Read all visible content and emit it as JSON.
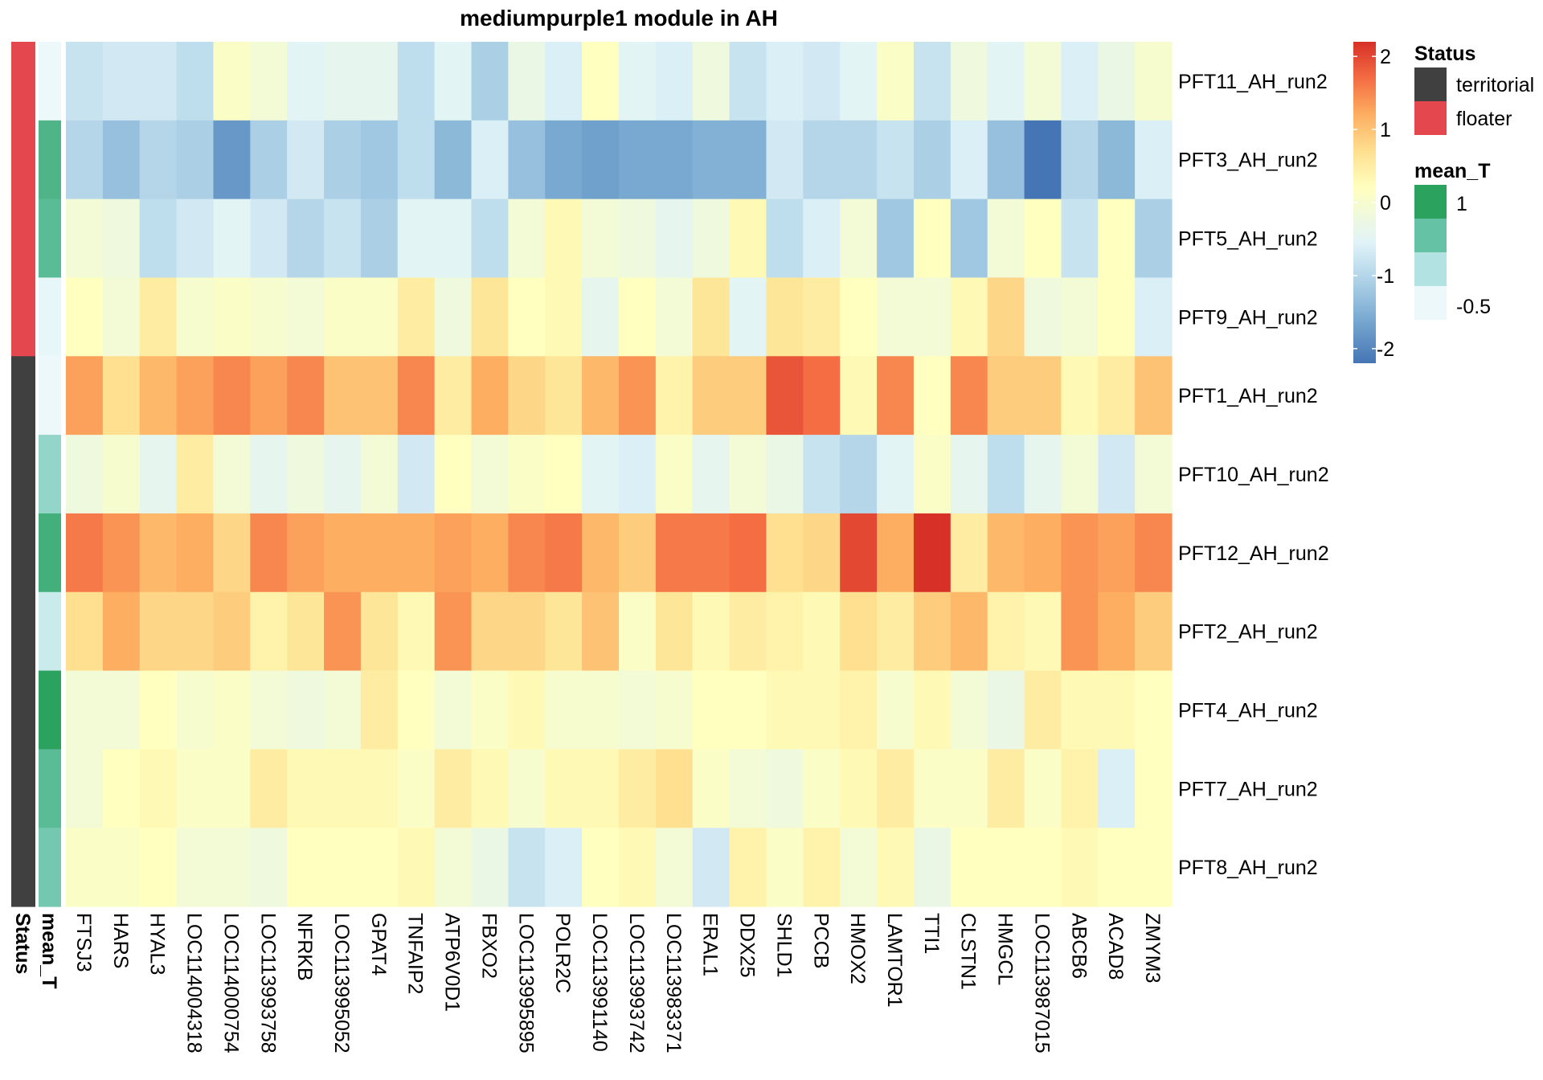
{
  "chart_data": {
    "type": "heatmap",
    "title": "mediumpurple1 module in AH",
    "columns": [
      "FTSJ3",
      "HARS",
      "HYAL3",
      "LOC114004318",
      "LOC114000754",
      "LOC113993758",
      "NFRKB",
      "LOC113995052",
      "GPAT4",
      "TNFAIP2",
      "ATP6V0D1",
      "FBXO2",
      "LOC113995895",
      "POLR2C",
      "LOC113991140",
      "LOC113993742",
      "LOC113983371",
      "ERAL1",
      "DDX25",
      "SHLD1",
      "PCCB",
      "HMOX2",
      "LAMTOR1",
      "TTI1",
      "CLSTN1",
      "HMGCL",
      "LOC113987015",
      "ABCB6",
      "ACAD8",
      "ZMYM3"
    ],
    "rows": [
      "PFT11_AH_run2",
      "PFT3_AH_run2",
      "PFT5_AH_run2",
      "PFT9_AH_run2",
      "PFT1_AH_run2",
      "PFT10_AH_run2",
      "PFT12_AH_run2",
      "PFT2_AH_run2",
      "PFT4_AH_run2",
      "PFT7_AH_run2",
      "PFT8_AH_run2"
    ],
    "values": [
      [
        -0.8,
        -0.7,
        -0.7,
        -0.9,
        0.1,
        -0.1,
        -0.5,
        -0.4,
        -0.4,
        -0.9,
        -0.5,
        -1.1,
        -0.3,
        -0.6,
        0.2,
        -0.5,
        -0.6,
        -0.2,
        -0.8,
        -0.6,
        -0.7,
        -0.5,
        0.1,
        -0.8,
        -0.2,
        -0.5,
        -0.1,
        -0.6,
        -0.3,
        0.0
      ],
      [
        -1.0,
        -1.3,
        -1.0,
        -1.1,
        -1.8,
        -1.1,
        -0.7,
        -1.1,
        -1.2,
        -0.9,
        -1.4,
        -0.6,
        -1.3,
        -1.6,
        -1.7,
        -1.6,
        -1.6,
        -1.5,
        -1.5,
        -0.7,
        -1.0,
        -1.0,
        -0.8,
        -1.1,
        -0.6,
        -1.3,
        -2.2,
        -1.0,
        -1.4,
        -0.6
      ],
      [
        -0.1,
        -0.2,
        -0.9,
        -0.7,
        -0.5,
        -0.7,
        -1.0,
        -0.8,
        -1.1,
        -0.5,
        -0.5,
        -0.9,
        -0.1,
        0.3,
        -0.1,
        -0.2,
        -0.4,
        -0.2,
        0.3,
        -0.9,
        -0.6,
        -0.1,
        -1.2,
        0.2,
        -1.2,
        -0.1,
        0.2,
        -0.8,
        0.2,
        -1.1
      ],
      [
        0.2,
        -0.1,
        0.5,
        0.0,
        0.1,
        0.0,
        -0.1,
        0.1,
        0.1,
        0.5,
        -0.2,
        0.6,
        0.2,
        0.3,
        -0.4,
        0.2,
        -0.1,
        0.6,
        -0.5,
        0.6,
        0.5,
        0.2,
        -0.1,
        -0.1,
        0.3,
        0.8,
        -0.2,
        -0.1,
        0.2,
        -0.6
      ],
      [
        1.3,
        0.7,
        1.1,
        1.3,
        1.5,
        1.3,
        1.5,
        1.0,
        1.0,
        1.5,
        0.5,
        1.2,
        0.8,
        0.6,
        1.1,
        1.4,
        0.4,
        0.9,
        0.9,
        1.9,
        1.7,
        0.3,
        1.5,
        0.2,
        1.5,
        0.9,
        0.9,
        0.3,
        0.5,
        1.0
      ],
      [
        -0.2,
        0.0,
        -0.4,
        0.5,
        -0.1,
        -0.4,
        -0.2,
        -0.4,
        -0.1,
        -0.7,
        0.2,
        -0.1,
        0.1,
        0.2,
        -0.5,
        -0.6,
        0.1,
        -0.4,
        -0.1,
        -0.3,
        -0.8,
        -1.0,
        -0.5,
        0.1,
        -0.4,
        -0.9,
        -0.4,
        -0.1,
        -0.7,
        -0.1
      ],
      [
        1.6,
        1.4,
        1.1,
        1.2,
        0.8,
        1.5,
        1.3,
        1.2,
        1.2,
        1.2,
        1.3,
        1.2,
        1.5,
        1.6,
        1.1,
        0.9,
        1.6,
        1.6,
        1.7,
        0.7,
        0.8,
        2.0,
        1.2,
        2.2,
        0.5,
        1.1,
        1.2,
        1.4,
        1.3,
        1.5
      ],
      [
        0.7,
        1.2,
        0.8,
        0.8,
        0.9,
        0.4,
        0.6,
        1.4,
        0.6,
        0.3,
        1.4,
        0.8,
        0.8,
        0.6,
        1.0,
        0.1,
        0.6,
        0.3,
        0.5,
        0.4,
        0.3,
        0.7,
        0.5,
        0.9,
        1.1,
        0.4,
        0.3,
        1.4,
        1.2,
        0.9
      ],
      [
        -0.1,
        -0.1,
        0.2,
        0.0,
        0.1,
        -0.1,
        -0.2,
        -0.1,
        0.5,
        0.2,
        -0.1,
        0.1,
        0.3,
        0.0,
        0.0,
        -0.1,
        0.0,
        0.2,
        0.2,
        0.3,
        0.3,
        0.4,
        0.0,
        0.3,
        -0.1,
        -0.3,
        0.5,
        0.3,
        0.3,
        0.2
      ],
      [
        -0.1,
        0.2,
        0.3,
        0.1,
        0.1,
        0.5,
        0.3,
        0.3,
        0.3,
        0.1,
        0.5,
        0.3,
        0.0,
        0.3,
        0.3,
        0.5,
        0.7,
        0.1,
        -0.1,
        -0.2,
        0.1,
        0.3,
        0.5,
        0.1,
        0.1,
        0.5,
        0.1,
        0.4,
        -0.6,
        0.2
      ],
      [
        0.1,
        0.1,
        0.2,
        -0.1,
        -0.1,
        -0.2,
        0.2,
        0.2,
        0.2,
        0.3,
        -0.1,
        -0.3,
        -0.8,
        -0.6,
        0.2,
        0.3,
        -0.1,
        -0.7,
        0.4,
        0.1,
        0.4,
        -0.1,
        0.3,
        -0.3,
        0.2,
        0.2,
        0.2,
        0.3,
        0.2,
        0.2
      ]
    ],
    "row_annotations": {
      "Status": [
        "floater",
        "floater",
        "floater",
        "floater",
        "territorial",
        "territorial",
        "territorial",
        "territorial",
        "territorial",
        "territorial",
        "territorial"
      ],
      "mean_T": [
        -0.6,
        0.7,
        0.6,
        -0.45,
        -0.6,
        0.2,
        0.8,
        -0.2,
        1.0,
        0.6,
        0.4
      ]
    },
    "annotation_labels": [
      "Status",
      "mean_T"
    ],
    "color_scale": {
      "stops": [
        {
          "value": -2.2,
          "color": "#4575b4"
        },
        {
          "value": -1.65,
          "color": "#74a5cf"
        },
        {
          "value": -1.1,
          "color": "#abd0e6"
        },
        {
          "value": -0.55,
          "color": "#e0f3f8"
        },
        {
          "value": 0.2,
          "color": "#ffffbf"
        },
        {
          "value": 0.7,
          "color": "#fee090"
        },
        {
          "value": 1.2,
          "color": "#fdae61"
        },
        {
          "value": 1.7,
          "color": "#f46d43"
        },
        {
          "value": 2.2,
          "color": "#d73027"
        }
      ],
      "ticks": [
        "2",
        "1",
        "0",
        "-1",
        "-2"
      ],
      "tick_values": [
        2,
        1,
        0,
        -1,
        -2
      ]
    },
    "status_legend": {
      "title": "Status",
      "items": [
        {
          "label": "territorial",
          "color": "#404040"
        },
        {
          "label": "floater",
          "color": "#e5474f"
        }
      ]
    },
    "mean_T_legend": {
      "title": "mean_T",
      "colors": [
        "#2ca25f",
        "#66c2a4",
        "#b2e2e2",
        "#edf8fb"
      ],
      "labels": [
        "1",
        "",
        "",
        "-0.5"
      ]
    }
  }
}
